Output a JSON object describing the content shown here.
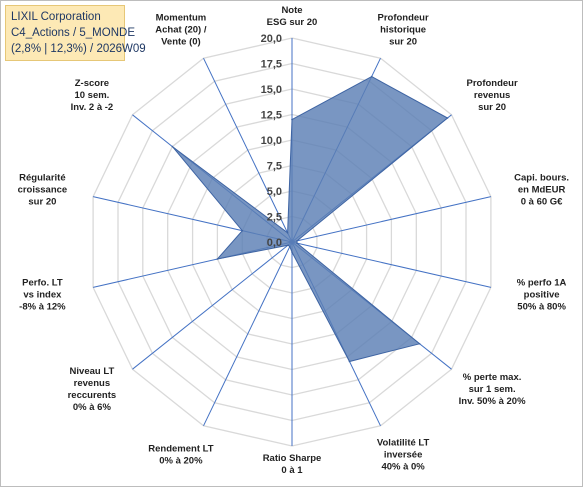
{
  "title_box": {
    "line1": "LIXIL Corporation",
    "line2": "C4_Actions / 5_MONDE",
    "line3": "(2,8% | 12,3%) / 2026W09"
  },
  "colors": {
    "fill": "#5b7fb5",
    "stroke": "#3e64a3",
    "grid": "#d9d9d9",
    "spoke": "#4472c4",
    "title_bg": "#fde9b5"
  },
  "chart_data": {
    "type": "radar",
    "rmin": 0,
    "rmax": 20,
    "ticks": [
      "0,0",
      "2,5",
      "5,0",
      "7,5",
      "10,0",
      "12,5",
      "15,0",
      "17,5",
      "20,0"
    ],
    "axes": [
      {
        "label": [
          "Note",
          "ESG sur 20"
        ],
        "value": 12
      },
      {
        "label": [
          "Profondeur",
          "historique",
          "sur 20"
        ],
        "value": 18
      },
      {
        "label": [
          "Profondeur",
          "revenus",
          "sur 20"
        ],
        "value": 19.5
      },
      {
        "label": [
          "Capi. bours.",
          "en MdEUR",
          "0 à 60 G€"
        ],
        "value": 0.5
      },
      {
        "label": [
          "% perfo 1A",
          "positive",
          "50% à 80%"
        ],
        "value": 0.5
      },
      {
        "label": [
          "% perte max.",
          "sur 1 sem.",
          "Inv. 50% à 20%"
        ],
        "value": 16
      },
      {
        "label": [
          "Volatilité LT",
          "inversée",
          "40% à 0%"
        ],
        "value": 13
      },
      {
        "label": [
          "Ratio Sharpe",
          "0 à 1"
        ],
        "value": 1
      },
      {
        "label": [
          "Rendement LT",
          "0% à 20%"
        ],
        "value": 0.5
      },
      {
        "label": [
          "Niveau LT",
          "revenus",
          "reccurents",
          "0% à 6%"
        ],
        "value": 0.5
      },
      {
        "label": [
          "Perfo. LT",
          "vs index",
          "-8% à 12%"
        ],
        "value": 7.5
      },
      {
        "label": [
          "Régularité",
          "croissance",
          "sur 20"
        ],
        "value": 5
      },
      {
        "label": [
          "Z-score",
          "10 sem.",
          "Inv. 2 à -2"
        ],
        "value": 15
      },
      {
        "label": [
          "Momentum",
          "Achat (20) /",
          "Vente (0)"
        ],
        "value": 1
      }
    ]
  }
}
